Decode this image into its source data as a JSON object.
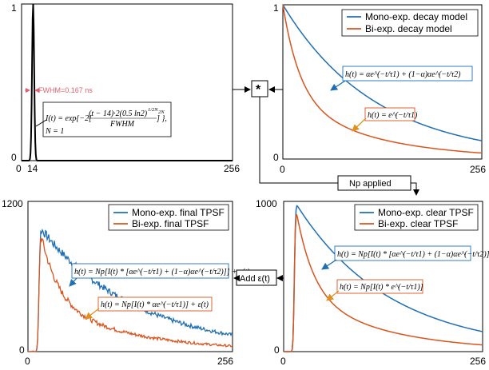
{
  "colors": {
    "mono": "#1f6fb5",
    "bi": "#d9541e",
    "black": "#000000",
    "fwhm": "#e06070"
  },
  "panel_tl": {
    "yticks": [
      "0",
      "1"
    ],
    "xticks": [
      "0",
      "14",
      "256"
    ],
    "fwhm_label": "FWHM=0.167 ns",
    "irf_eq": "I(t) = exp{−2[(t − 14)·2(0.5 ln 2)^(1/2N) / FWHM]^(2N)},",
    "irf_eq_parts": {
      "lhs": "I(t) = exp{−2[",
      "num": "(t − 14)·2(0.5 ln2)",
      "exp": "1/2N",
      "den": "FWHM",
      "outer_exp": "2N",
      "close": "]   },"
    },
    "n_label": "N = 1"
  },
  "panel_tr": {
    "yticks": [
      "0",
      "1"
    ],
    "xticks": [
      "0",
      "256"
    ],
    "legend": [
      "Mono-exp. decay model",
      "Bi-exp. decay model"
    ],
    "eq_mono": "h(t) = αe^(−t/τ1) + (1−α)αe^(−t/τ2)",
    "eq_bi": "h(t) = e^(−t/τ1)"
  },
  "panel_br": {
    "yticks": [
      "0",
      "1000"
    ],
    "xticks": [
      "0",
      "256"
    ],
    "legend": [
      "Mono-exp. clear TPSF",
      "Bi-exp. clear TPSF"
    ],
    "eq_mono": "h(t) = Np[I(t) * [αe^(−t/τ1) + (1−α)αe^(−t/τ2)]]",
    "eq_bi": "h(t) = Np[I(t) * e^(−t/τ1)]"
  },
  "panel_bl": {
    "yticks": [
      "0",
      "1200"
    ],
    "xticks": [
      "0",
      "256"
    ],
    "legend": [
      "Mono-exp. final TPSF",
      "Bi-exp. final TPSF"
    ],
    "eq_mono": "h(t) = Np[I(t) * [αe^(−t/τ1) + (1−α)αe^(−t/τ2)]] + ε(t)",
    "eq_bi": "h(t) = Np[I(t) * αe^(−t/τ1)] + ε(t)"
  },
  "flow": {
    "convolve_symbol": "*",
    "np_applied_label": "Np applied",
    "add_noise_label": "Add ε(t)"
  }
}
